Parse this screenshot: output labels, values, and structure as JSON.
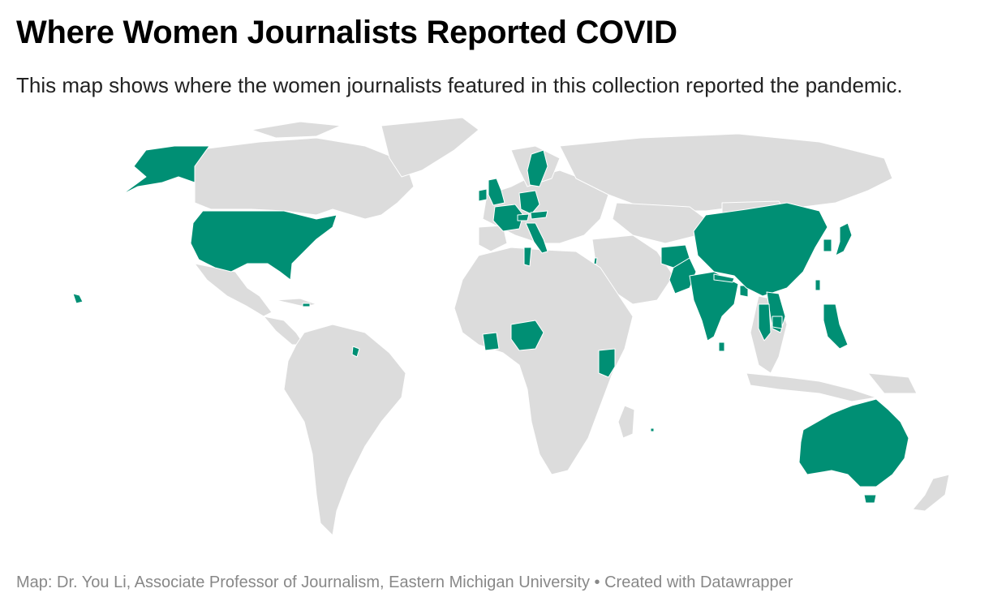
{
  "title": "Where Women Journalists Reported COVID",
  "subtitle": "This map shows where the women journalists featured in this collection reported the pandemic.",
  "footer": {
    "source": "Map: Dr. You Li, Associate Professor of Journalism, Eastern Michigan University",
    "separator": " • ",
    "credit": "Created with Datawrapper"
  },
  "colors": {
    "highlighted": "#008f74",
    "other": "#dcdcdc",
    "border": "#ffffff"
  },
  "highlighted_countries": [
    "United States",
    "United Kingdom",
    "Ireland",
    "France",
    "Germany",
    "Italy",
    "Switzerland",
    "Austria",
    "Sweden",
    "Tunisia",
    "Israel",
    "Pakistan",
    "Afghanistan",
    "India",
    "Nepal",
    "Bangladesh",
    "Sri Lanka",
    "China",
    "South Korea",
    "Japan",
    "Taiwan",
    "Philippines",
    "Vietnam",
    "Cambodia",
    "Thailand",
    "Nigeria",
    "Ivory Coast",
    "Kenya",
    "French Guiana",
    "Puerto Rico",
    "Hawaii",
    "Alaska",
    "Australia",
    "Mauritius"
  ]
}
